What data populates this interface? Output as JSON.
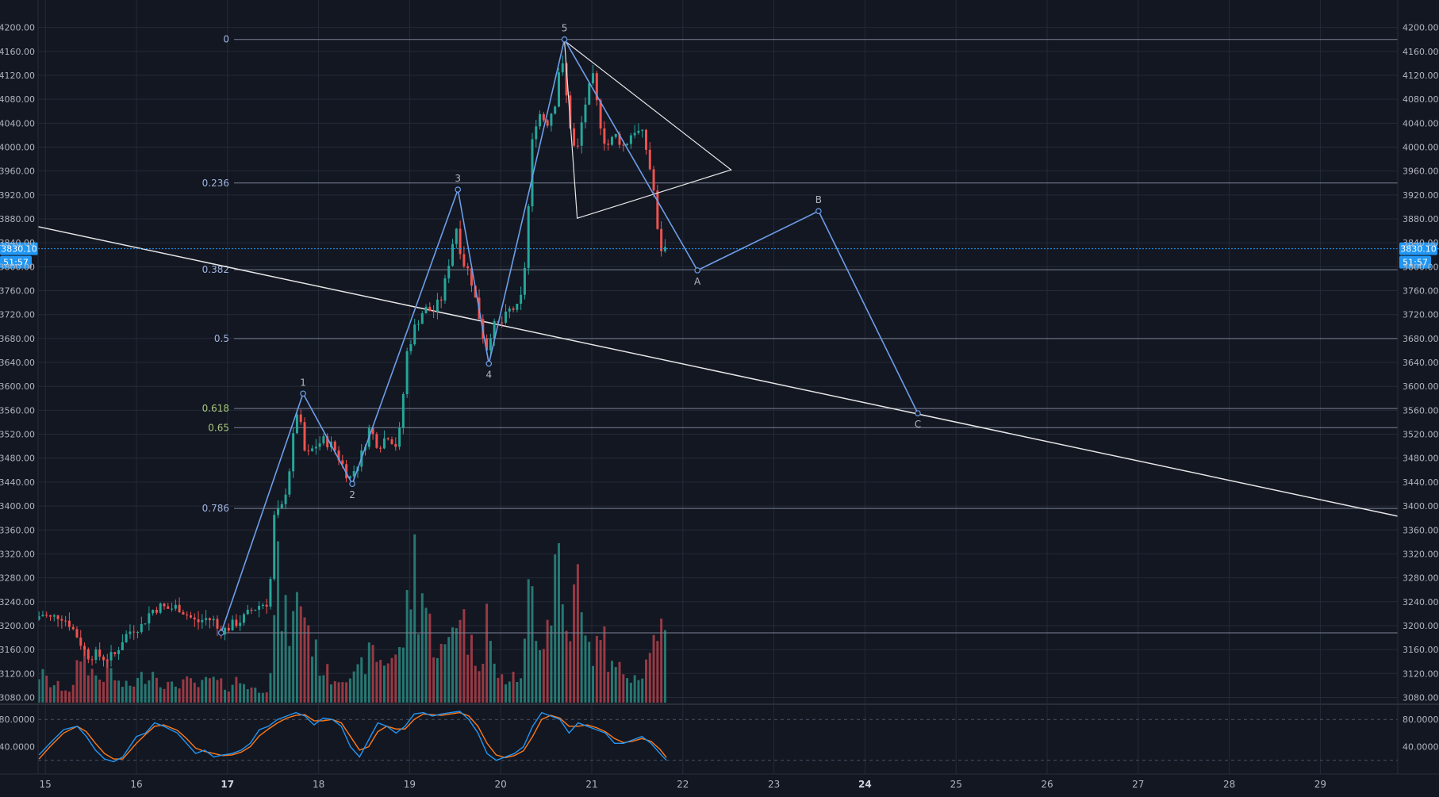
{
  "theme": {
    "background": "#131722",
    "grid": "#242a38",
    "axis_text": "#b2b5be",
    "up": "#26a69a",
    "down": "#ef5350",
    "volume_up": "#2a8a80",
    "volume_down": "#b0414a",
    "wave_line": "#6d9ee8",
    "fib_line": "#7a8294",
    "fib_label": "#9fb4e0",
    "fib_label_golden": "#a8c77a",
    "trend_line": "#e6e6e6",
    "price_line": "#2196f3",
    "price_badge": "#2196f3",
    "stoch_k": "#2196f3",
    "stoch_d": "#ff7a1a"
  },
  "chart_data": {
    "type": "candlestick",
    "symbol": "",
    "price_axis": {
      "range": [
        3070,
        4230
      ],
      "ticks": [
        "4200.00",
        "4160.00",
        "4120.00",
        "4080.00",
        "4040.00",
        "4000.00",
        "3960.00",
        "3920.00",
        "3880.00",
        "3840.00",
        "3800.00",
        "3760.00",
        "3720.00",
        "3680.00",
        "3640.00",
        "3600.00",
        "3560.00",
        "3520.00",
        "3480.00",
        "3440.00",
        "3400.00",
        "3360.00",
        "3320.00",
        "3280.00",
        "3240.00",
        "3200.00",
        "3160.00",
        "3120.00",
        "3080.00"
      ]
    },
    "time_axis": {
      "range": [
        14.92,
        29.85
      ],
      "ticks": [
        {
          "label": "15",
          "x": 15,
          "bold": false
        },
        {
          "label": "16",
          "x": 16,
          "bold": false
        },
        {
          "label": "17",
          "x": 17,
          "bold": true
        },
        {
          "label": "18",
          "x": 18,
          "bold": false
        },
        {
          "label": "19",
          "x": 19,
          "bold": false
        },
        {
          "label": "20",
          "x": 20,
          "bold": false
        },
        {
          "label": "21",
          "x": 21,
          "bold": false
        },
        {
          "label": "22",
          "x": 22,
          "bold": false
        },
        {
          "label": "23",
          "x": 23,
          "bold": false
        },
        {
          "label": "24",
          "x": 24,
          "bold": true
        },
        {
          "label": "25",
          "x": 25,
          "bold": false
        },
        {
          "label": "26",
          "x": 26,
          "bold": false
        },
        {
          "label": "27",
          "x": 27,
          "bold": false
        },
        {
          "label": "28",
          "x": 28,
          "bold": false
        },
        {
          "label": "29",
          "x": 29,
          "bold": false
        }
      ]
    },
    "current_price": {
      "label": "3830.10",
      "value": 3830.1,
      "countdown": "51:57"
    },
    "price_path": [
      [
        14.93,
        3210
      ],
      [
        15.0,
        3220
      ],
      [
        15.1,
        3212
      ],
      [
        15.2,
        3218
      ],
      [
        15.3,
        3205
      ],
      [
        15.4,
        3180
      ],
      [
        15.5,
        3150
      ],
      [
        15.6,
        3152
      ],
      [
        15.7,
        3145
      ],
      [
        15.8,
        3150
      ],
      [
        15.9,
        3180
      ],
      [
        16.0,
        3195
      ],
      [
        16.1,
        3200
      ],
      [
        16.2,
        3225
      ],
      [
        16.3,
        3232
      ],
      [
        16.4,
        3228
      ],
      [
        16.5,
        3232
      ],
      [
        16.6,
        3218
      ],
      [
        16.7,
        3205
      ],
      [
        16.8,
        3212
      ],
      [
        16.9,
        3208
      ],
      [
        16.93,
        3195
      ],
      [
        17.0,
        3192
      ],
      [
        17.1,
        3202
      ],
      [
        17.2,
        3210
      ],
      [
        17.3,
        3225
      ],
      [
        17.4,
        3235
      ],
      [
        17.5,
        3240
      ],
      [
        17.55,
        3380
      ],
      [
        17.65,
        3400
      ],
      [
        17.72,
        3460
      ],
      [
        17.8,
        3560
      ],
      [
        17.85,
        3530
      ],
      [
        17.9,
        3480
      ],
      [
        18.0,
        3500
      ],
      [
        18.1,
        3510
      ],
      [
        18.2,
        3500
      ],
      [
        18.3,
        3470
      ],
      [
        18.38,
        3445
      ],
      [
        18.5,
        3480
      ],
      [
        18.6,
        3530
      ],
      [
        18.7,
        3500
      ],
      [
        18.8,
        3520
      ],
      [
        18.9,
        3500
      ],
      [
        18.95,
        3540
      ],
      [
        19.0,
        3650
      ],
      [
        19.1,
        3700
      ],
      [
        19.2,
        3730
      ],
      [
        19.3,
        3725
      ],
      [
        19.4,
        3750
      ],
      [
        19.5,
        3830
      ],
      [
        19.55,
        3870
      ],
      [
        19.62,
        3810
      ],
      [
        19.7,
        3790
      ],
      [
        19.8,
        3720
      ],
      [
        19.88,
        3660
      ],
      [
        19.95,
        3700
      ],
      [
        20.05,
        3705
      ],
      [
        20.15,
        3730
      ],
      [
        20.25,
        3730
      ],
      [
        20.32,
        3820
      ],
      [
        20.38,
        4000
      ],
      [
        20.45,
        4060
      ],
      [
        20.55,
        4040
      ],
      [
        20.65,
        4080
      ],
      [
        20.7,
        4160
      ],
      [
        20.8,
        4040
      ],
      [
        20.87,
        3980
      ],
      [
        20.95,
        4060
      ],
      [
        21.05,
        4120
      ],
      [
        21.12,
        4050
      ],
      [
        21.2,
        4000
      ],
      [
        21.3,
        4020
      ],
      [
        21.4,
        4000
      ],
      [
        21.5,
        4030
      ],
      [
        21.6,
        4020
      ],
      [
        21.65,
        3990
      ],
      [
        21.72,
        3930
      ],
      [
        21.78,
        3830
      ],
      [
        21.83,
        3830
      ]
    ],
    "volume_profile": [
      [
        14.95,
        0.18
      ],
      [
        15.05,
        0.12
      ],
      [
        15.15,
        0.1
      ],
      [
        15.3,
        0.08
      ],
      [
        15.4,
        0.35
      ],
      [
        15.5,
        0.2
      ],
      [
        15.6,
        0.15
      ],
      [
        15.7,
        0.22
      ],
      [
        15.8,
        0.12
      ],
      [
        15.9,
        0.1
      ],
      [
        16.0,
        0.13
      ],
      [
        16.1,
        0.18
      ],
      [
        16.2,
        0.2
      ],
      [
        16.3,
        0.12
      ],
      [
        16.4,
        0.1
      ],
      [
        16.5,
        0.14
      ],
      [
        16.6,
        0.12
      ],
      [
        16.7,
        0.1
      ],
      [
        16.8,
        0.15
      ],
      [
        16.9,
        0.12
      ],
      [
        17.0,
        0.1
      ],
      [
        17.1,
        0.14
      ],
      [
        17.2,
        0.12
      ],
      [
        17.3,
        0.08
      ],
      [
        17.45,
        0.1
      ],
      [
        17.5,
        0.4
      ],
      [
        17.55,
        0.8
      ],
      [
        17.6,
        0.55
      ],
      [
        17.7,
        0.45
      ],
      [
        17.8,
        0.7
      ],
      [
        17.9,
        0.45
      ],
      [
        18.0,
        0.25
      ],
      [
        18.1,
        0.18
      ],
      [
        18.2,
        0.15
      ],
      [
        18.3,
        0.2
      ],
      [
        18.4,
        0.15
      ],
      [
        18.5,
        0.25
      ],
      [
        18.6,
        0.32
      ],
      [
        18.7,
        0.25
      ],
      [
        18.8,
        0.3
      ],
      [
        18.9,
        0.3
      ],
      [
        18.95,
        0.5
      ],
      [
        19.0,
        0.65
      ],
      [
        19.05,
        0.95
      ],
      [
        19.1,
        0.6
      ],
      [
        19.15,
        0.75
      ],
      [
        19.2,
        0.5
      ],
      [
        19.3,
        0.35
      ],
      [
        19.4,
        0.3
      ],
      [
        19.45,
        0.45
      ],
      [
        19.5,
        0.55
      ],
      [
        19.55,
        0.65
      ],
      [
        19.6,
        0.5
      ],
      [
        19.7,
        0.3
      ],
      [
        19.8,
        0.3
      ],
      [
        19.85,
        0.65
      ],
      [
        19.9,
        0.25
      ],
      [
        19.95,
        0.2
      ],
      [
        20.0,
        0.15
      ],
      [
        20.1,
        0.15
      ],
      [
        20.2,
        0.15
      ],
      [
        20.25,
        0.25
      ],
      [
        20.3,
        0.55
      ],
      [
        20.32,
        1.0
      ],
      [
        20.35,
        0.65
      ],
      [
        20.4,
        0.5
      ],
      [
        20.45,
        0.4
      ],
      [
        20.5,
        0.5
      ],
      [
        20.55,
        0.6
      ],
      [
        20.6,
        0.9
      ],
      [
        20.65,
        0.95
      ],
      [
        20.7,
        0.4
      ],
      [
        20.8,
        0.6
      ],
      [
        20.85,
        0.8
      ],
      [
        20.9,
        0.4
      ],
      [
        20.95,
        0.35
      ],
      [
        21.0,
        0.35
      ],
      [
        21.05,
        0.3
      ],
      [
        21.1,
        0.55
      ],
      [
        21.15,
        0.35
      ],
      [
        21.2,
        0.22
      ],
      [
        21.3,
        0.2
      ],
      [
        21.4,
        0.2
      ],
      [
        21.5,
        0.18
      ],
      [
        21.6,
        0.25
      ],
      [
        21.65,
        0.45
      ],
      [
        21.7,
        0.3
      ],
      [
        21.75,
        0.38
      ],
      [
        21.8,
        0.45
      ],
      [
        21.83,
        0.08
      ]
    ],
    "fibonacci_levels": [
      {
        "label": "0",
        "price": 4180,
        "golden": false
      },
      {
        "label": "0.236",
        "price": 3940,
        "golden": false
      },
      {
        "label": "0.382",
        "price": 3795,
        "golden": false
      },
      {
        "label": "0.5",
        "price": 3680,
        "golden": false
      },
      {
        "label": "0.618",
        "price": 3563,
        "golden": false
      },
      {
        "label": "0.65",
        "price": 3531,
        "golden": true
      },
      {
        "label": "0.786",
        "price": 3396,
        "golden": false
      },
      {
        "label": "",
        "price": 3188,
        "golden": false
      }
    ],
    "wave_points": [
      {
        "label": "",
        "x": 16.93,
        "y": 3188,
        "label_pos": "below"
      },
      {
        "label": "1",
        "x": 17.83,
        "y": 3588,
        "label_pos": "above"
      },
      {
        "label": "2",
        "x": 18.37,
        "y": 3437,
        "label_pos": "below"
      },
      {
        "label": "3",
        "x": 19.53,
        "y": 3929,
        "label_pos": "above"
      },
      {
        "label": "4",
        "x": 19.87,
        "y": 3638,
        "label_pos": "below"
      },
      {
        "label": "5",
        "x": 20.7,
        "y": 4180,
        "label_pos": "above"
      },
      {
        "label": "A",
        "x": 22.16,
        "y": 3794,
        "label_pos": "below"
      },
      {
        "label": "B",
        "x": 23.49,
        "y": 3893,
        "label_pos": "above"
      },
      {
        "label": "C",
        "x": 24.58,
        "y": 3555,
        "label_pos": "below"
      }
    ],
    "trend_line": {
      "from": [
        14.92,
        3867
      ],
      "to": [
        29.85,
        3383
      ]
    },
    "triangle": {
      "points": [
        [
          20.7,
          4178
        ],
        [
          22.53,
          3962
        ],
        [
          20.84,
          3881
        ]
      ]
    },
    "stochastic": {
      "ticks": [
        "80.0000",
        "40.0000"
      ],
      "range": [
        0,
        100
      ],
      "upper_band": 80,
      "lower_band": 20,
      "k": [
        [
          14.93,
          28
        ],
        [
          15.05,
          45
        ],
        [
          15.2,
          65
        ],
        [
          15.35,
          70
        ],
        [
          15.45,
          55
        ],
        [
          15.55,
          35
        ],
        [
          15.65,
          22
        ],
        [
          15.75,
          18
        ],
        [
          15.85,
          25
        ],
        [
          16.0,
          55
        ],
        [
          16.1,
          60
        ],
        [
          16.2,
          75
        ],
        [
          16.3,
          70
        ],
        [
          16.45,
          60
        ],
        [
          16.55,
          45
        ],
        [
          16.65,
          30
        ],
        [
          16.75,
          35
        ],
        [
          16.85,
          25
        ],
        [
          16.95,
          28
        ],
        [
          17.05,
          30
        ],
        [
          17.15,
          35
        ],
        [
          17.25,
          45
        ],
        [
          17.35,
          65
        ],
        [
          17.45,
          70
        ],
        [
          17.55,
          80
        ],
        [
          17.65,
          85
        ],
        [
          17.75,
          90
        ],
        [
          17.85,
          85
        ],
        [
          17.95,
          72
        ],
        [
          18.05,
          82
        ],
        [
          18.15,
          80
        ],
        [
          18.25,
          70
        ],
        [
          18.35,
          40
        ],
        [
          18.45,
          25
        ],
        [
          18.55,
          50
        ],
        [
          18.65,
          75
        ],
        [
          18.75,
          70
        ],
        [
          18.85,
          60
        ],
        [
          18.95,
          70
        ],
        [
          19.05,
          88
        ],
        [
          19.15,
          90
        ],
        [
          19.25,
          85
        ],
        [
          19.35,
          88
        ],
        [
          19.45,
          90
        ],
        [
          19.55,
          92
        ],
        [
          19.65,
          80
        ],
        [
          19.75,
          60
        ],
        [
          19.85,
          30
        ],
        [
          19.95,
          20
        ],
        [
          20.05,
          25
        ],
        [
          20.15,
          30
        ],
        [
          20.25,
          40
        ],
        [
          20.35,
          70
        ],
        [
          20.45,
          90
        ],
        [
          20.55,
          85
        ],
        [
          20.65,
          80
        ],
        [
          20.75,
          60
        ],
        [
          20.85,
          75
        ],
        [
          20.95,
          70
        ],
        [
          21.05,
          65
        ],
        [
          21.15,
          60
        ],
        [
          21.25,
          45
        ],
        [
          21.35,
          45
        ],
        [
          21.45,
          50
        ],
        [
          21.55,
          55
        ],
        [
          21.65,
          45
        ],
        [
          21.75,
          30
        ],
        [
          21.82,
          20
        ]
      ],
      "d": [
        [
          14.93,
          22
        ],
        [
          15.05,
          40
        ],
        [
          15.2,
          60
        ],
        [
          15.35,
          70
        ],
        [
          15.45,
          62
        ],
        [
          15.55,
          45
        ],
        [
          15.65,
          30
        ],
        [
          15.75,
          22
        ],
        [
          15.85,
          22
        ],
        [
          16.0,
          45
        ],
        [
          16.1,
          58
        ],
        [
          16.2,
          70
        ],
        [
          16.3,
          72
        ],
        [
          16.45,
          64
        ],
        [
          16.55,
          52
        ],
        [
          16.65,
          38
        ],
        [
          16.75,
          33
        ],
        [
          16.85,
          30
        ],
        [
          16.95,
          27
        ],
        [
          17.05,
          28
        ],
        [
          17.15,
          32
        ],
        [
          17.25,
          40
        ],
        [
          17.35,
          56
        ],
        [
          17.45,
          66
        ],
        [
          17.55,
          75
        ],
        [
          17.65,
          82
        ],
        [
          17.75,
          86
        ],
        [
          17.85,
          87
        ],
        [
          17.95,
          78
        ],
        [
          18.05,
          78
        ],
        [
          18.15,
          80
        ],
        [
          18.25,
          75
        ],
        [
          18.35,
          55
        ],
        [
          18.45,
          35
        ],
        [
          18.55,
          40
        ],
        [
          18.65,
          62
        ],
        [
          18.75,
          70
        ],
        [
          18.85,
          66
        ],
        [
          18.95,
          66
        ],
        [
          19.05,
          80
        ],
        [
          19.15,
          88
        ],
        [
          19.25,
          87
        ],
        [
          19.35,
          86
        ],
        [
          19.45,
          88
        ],
        [
          19.55,
          90
        ],
        [
          19.65,
          85
        ],
        [
          19.75,
          70
        ],
        [
          19.85,
          45
        ],
        [
          19.95,
          28
        ],
        [
          20.05,
          24
        ],
        [
          20.15,
          27
        ],
        [
          20.25,
          34
        ],
        [
          20.35,
          55
        ],
        [
          20.45,
          80
        ],
        [
          20.55,
          86
        ],
        [
          20.65,
          82
        ],
        [
          20.75,
          70
        ],
        [
          20.85,
          70
        ],
        [
          20.95,
          72
        ],
        [
          21.05,
          68
        ],
        [
          21.15,
          62
        ],
        [
          21.25,
          52
        ],
        [
          21.35,
          46
        ],
        [
          21.45,
          48
        ],
        [
          21.55,
          52
        ],
        [
          21.65,
          48
        ],
        [
          21.75,
          36
        ],
        [
          21.82,
          24
        ]
      ]
    }
  }
}
